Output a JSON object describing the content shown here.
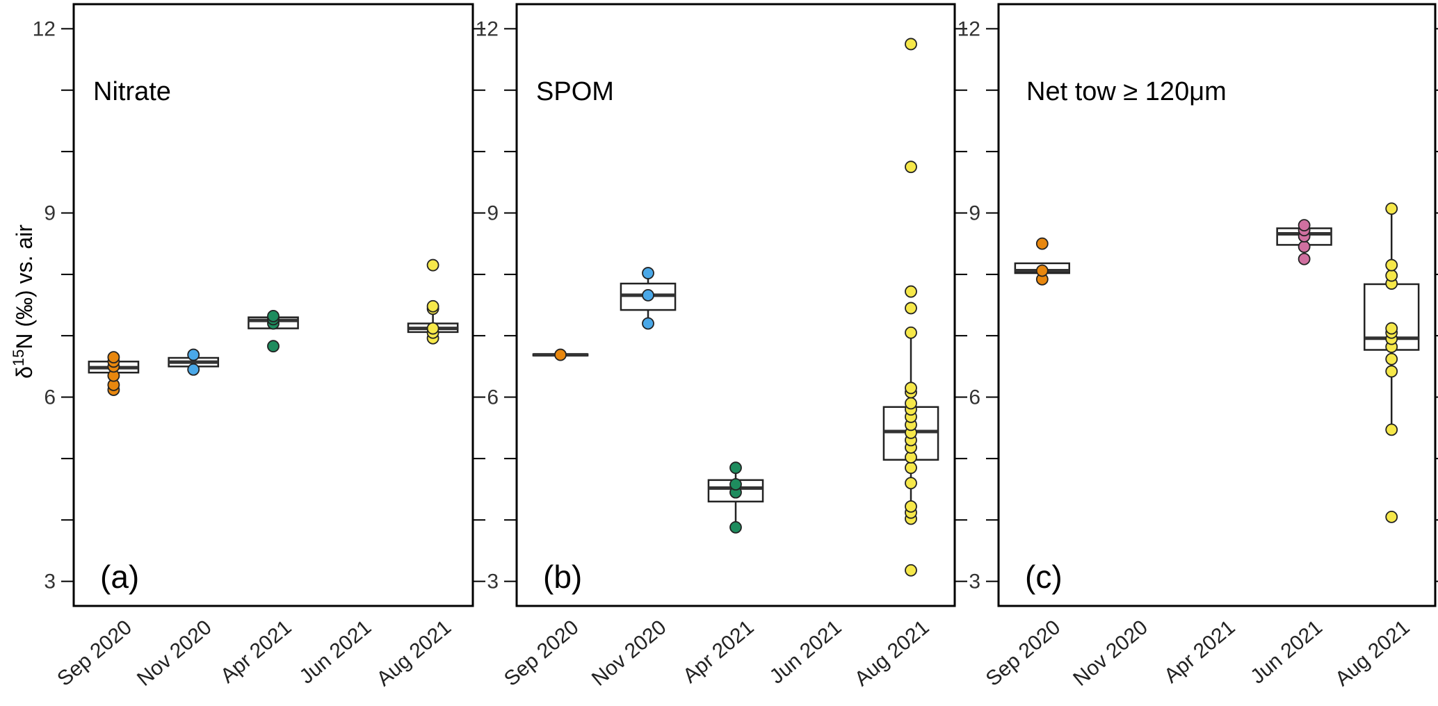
{
  "colors": {
    "Sep 2020": "#E8870E",
    "Nov 2020": "#4AA8E8",
    "Apr 2021": "#1E8C5E",
    "Jun 2021": "#D070A0",
    "Aug 2021": "#F6E84A"
  },
  "chart_data": [
    {
      "type": "box",
      "title": "Nitrate",
      "panel": "(a)",
      "ylabel_prefix": "δ",
      "ylabel_sup": "15",
      "ylabel_suffix": "N (‰) vs. air",
      "ylim": [
        2.6,
        12.4
      ],
      "yticks": [
        3,
        6,
        9,
        12
      ],
      "categories": [
        "Sep 2020",
        "Nov 2020",
        "Apr 2021",
        "Jun 2021",
        "Aug 2021"
      ],
      "boxes": [
        {
          "category": "Sep 2020",
          "q1": 6.4,
          "median": 6.48,
          "q3": 6.58,
          "whisker_low": 6.4,
          "whisker_high": 6.58,
          "points": [
            6.12,
            6.2,
            6.35,
            6.5,
            6.58,
            6.65
          ]
        },
        {
          "category": "Nov 2020",
          "q1": 6.5,
          "median": 6.57,
          "q3": 6.64,
          "whisker_low": 6.5,
          "whisker_high": 6.64,
          "points": [
            6.45,
            6.69
          ]
        },
        {
          "category": "Apr 2021",
          "q1": 7.12,
          "median": 7.25,
          "q3": 7.3,
          "whisker_low": 7.12,
          "whisker_high": 7.3,
          "points": [
            6.83,
            7.2,
            7.27,
            7.32
          ]
        },
        {
          "category": "Aug 2021",
          "q1": 7.06,
          "median": 7.12,
          "q3": 7.2,
          "whisker_low": 7.06,
          "whisker_high": 7.44,
          "points": [
            6.96,
            7.05,
            7.12,
            7.44,
            7.48,
            8.15
          ]
        }
      ]
    },
    {
      "type": "box",
      "title": "SPOM",
      "panel": "(b)",
      "ylim": [
        2.6,
        12.4
      ],
      "yticks": [
        3,
        6,
        9,
        12
      ],
      "categories": [
        "Sep 2020",
        "Nov 2020",
        "Apr 2021",
        "Jun 2021",
        "Aug 2021"
      ],
      "boxes": [
        {
          "category": "Sep 2020",
          "q1": 6.68,
          "median": 6.69,
          "q3": 6.7,
          "whisker_low": 6.68,
          "whisker_high": 6.7,
          "points": [
            6.69
          ]
        },
        {
          "category": "Nov 2020",
          "q1": 7.42,
          "median": 7.66,
          "q3": 7.85,
          "whisker_low": 7.2,
          "whisker_high": 8.02,
          "points": [
            7.2,
            7.66,
            8.02
          ]
        },
        {
          "category": "Apr 2021",
          "q1": 4.3,
          "median": 4.52,
          "q3": 4.65,
          "whisker_low": 3.88,
          "whisker_high": 4.85,
          "points": [
            3.88,
            4.45,
            4.58,
            4.85
          ]
        },
        {
          "category": "Aug 2021",
          "q1": 4.98,
          "median": 5.44,
          "q3": 5.84,
          "whisker_low": 4.02,
          "whisker_high": 7.05,
          "points": [
            3.18,
            4.02,
            4.12,
            4.22,
            4.6,
            4.85,
            5.02,
            5.18,
            5.3,
            5.42,
            5.55,
            5.68,
            5.8,
            5.9,
            6.08,
            6.15,
            7.05,
            7.45,
            7.72,
            9.75,
            11.75
          ]
        }
      ]
    },
    {
      "type": "box",
      "title": "Net tow ≥ 120μm",
      "panel": "(c)",
      "ylim": [
        2.6,
        12.4
      ],
      "yticks": [
        3,
        6,
        9,
        12
      ],
      "categories": [
        "Sep 2020",
        "Nov 2020",
        "Apr 2021",
        "Jun 2021",
        "Aug 2021"
      ],
      "boxes": [
        {
          "category": "Sep 2020",
          "q1": 8.02,
          "median": 8.06,
          "q3": 8.18,
          "whisker_low": 8.02,
          "whisker_high": 8.18,
          "points": [
            7.92,
            8.06,
            8.5
          ]
        },
        {
          "category": "Jun 2021",
          "q1": 8.48,
          "median": 8.66,
          "q3": 8.75,
          "whisker_low": 8.48,
          "whisker_high": 8.75,
          "points": [
            8.25,
            8.45,
            8.62,
            8.72,
            8.8
          ]
        },
        {
          "category": "Aug 2021",
          "q1": 6.77,
          "median": 6.96,
          "q3": 7.84,
          "whisker_low": 5.47,
          "whisker_high": 9.07,
          "points": [
            4.05,
            5.47,
            6.42,
            6.62,
            6.82,
            6.95,
            7.05,
            7.12,
            7.85,
            7.98,
            8.15,
            9.07
          ]
        }
      ]
    }
  ]
}
